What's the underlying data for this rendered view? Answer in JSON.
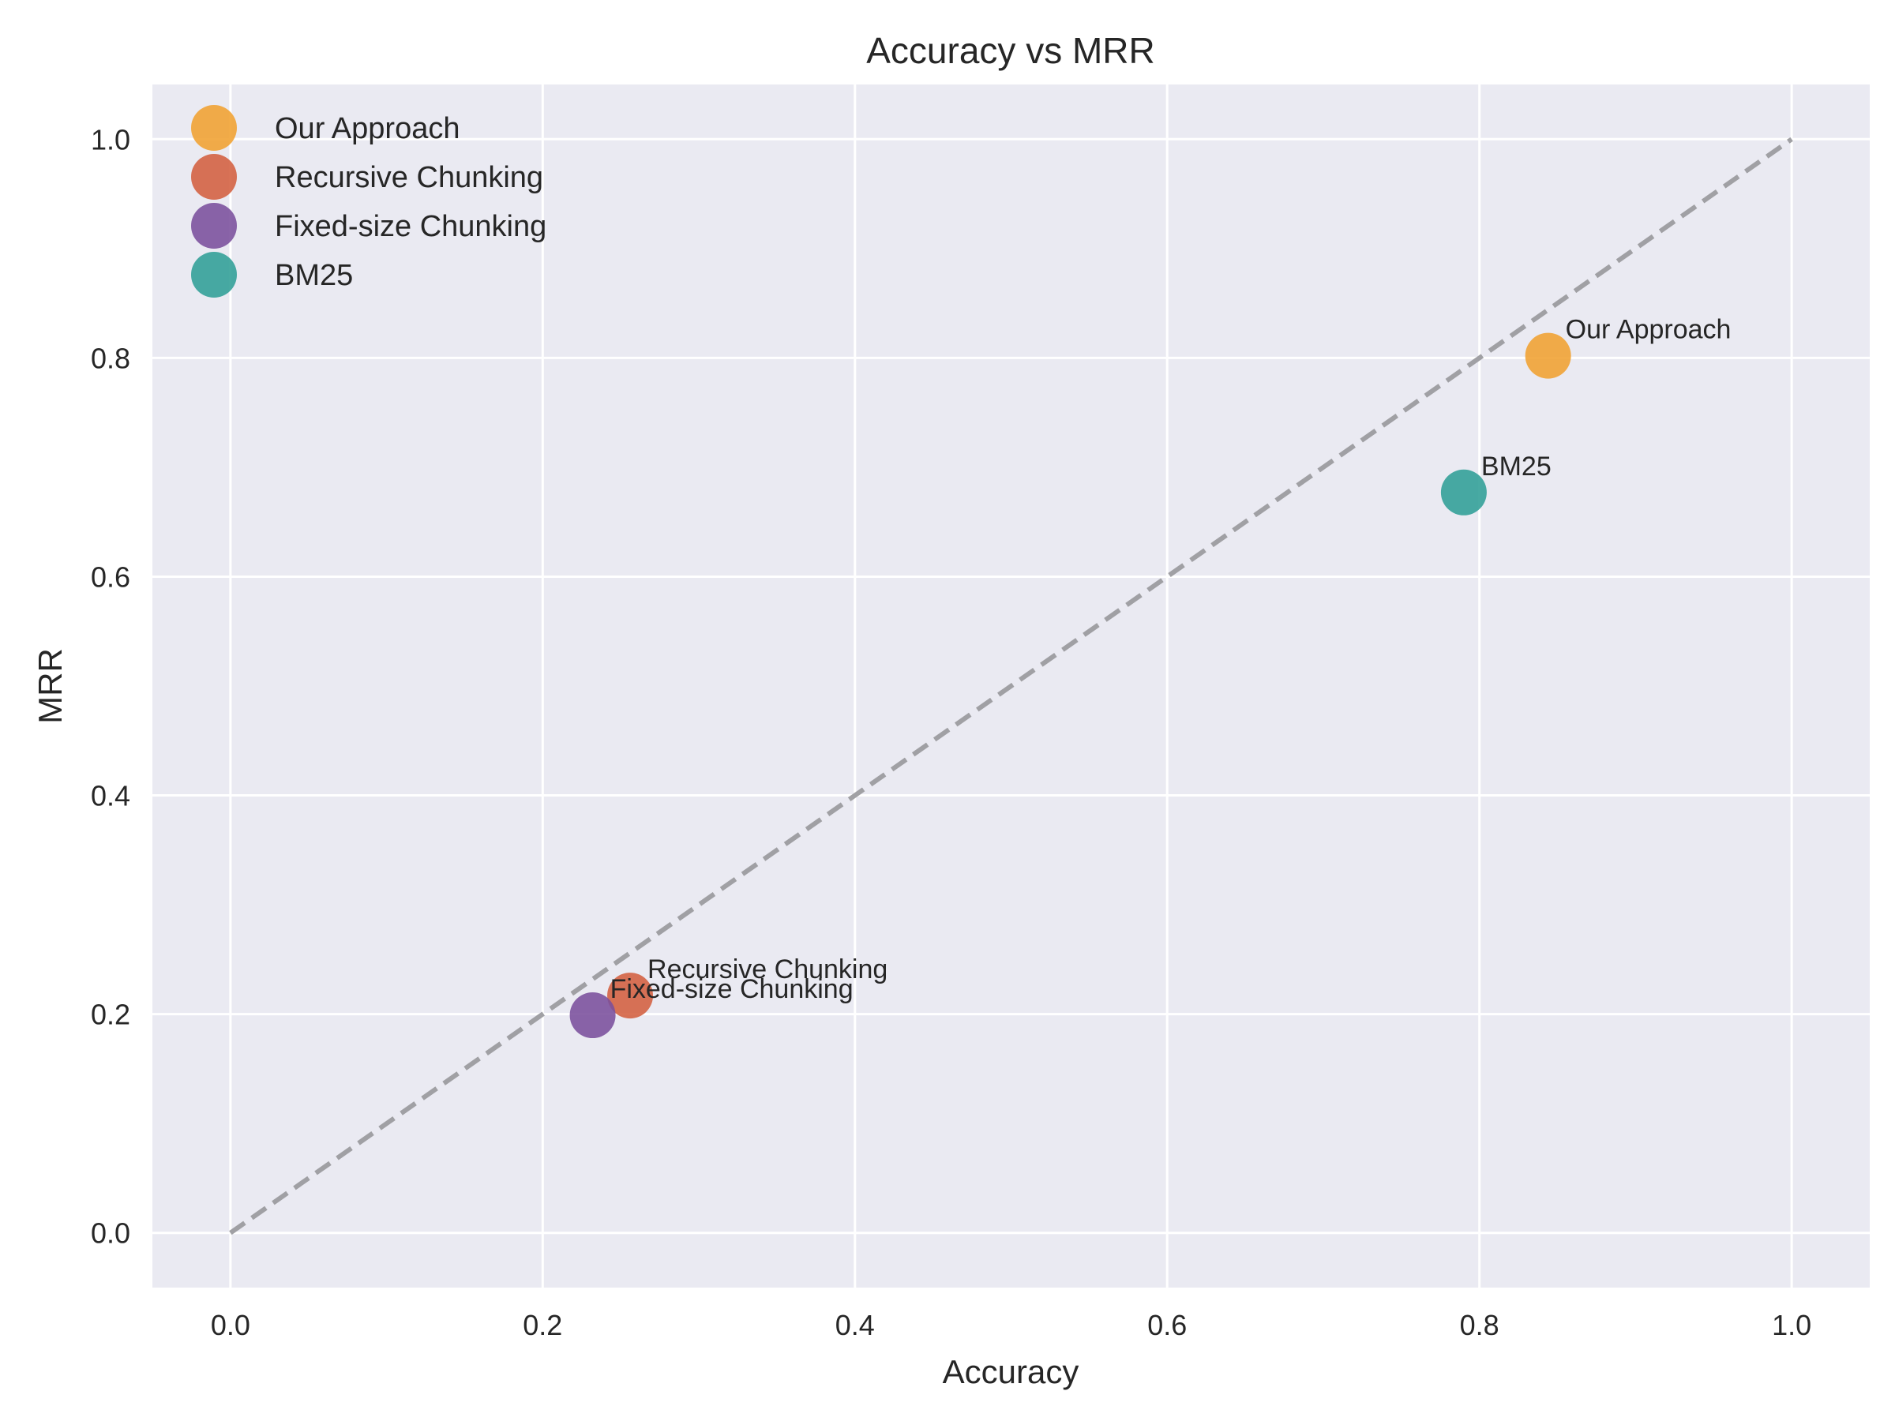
{
  "chart_data": {
    "type": "scatter",
    "title": "Accuracy vs MRR",
    "xlabel": "Accuracy",
    "ylabel": "MRR",
    "xlim": [
      -0.05,
      1.05
    ],
    "ylim": [
      -0.05,
      1.05
    ],
    "xticks": [
      "0.0",
      "0.2",
      "0.4",
      "0.6",
      "0.8",
      "1.0"
    ],
    "yticks": [
      "0.0",
      "0.2",
      "0.4",
      "0.6",
      "0.8",
      "1.0"
    ],
    "grid": true,
    "legend_position": "top-left",
    "reference_line": {
      "from": [
        0,
        0
      ],
      "to": [
        1,
        1
      ],
      "style": "dashed",
      "color": "#a0a0a4"
    },
    "series": [
      {
        "name": "Our Approach",
        "x": 0.844,
        "y": 0.802,
        "color": "#f0a030",
        "annotation": "Our Approach"
      },
      {
        "name": "Recursive Chunking",
        "x": 0.256,
        "y": 0.217,
        "color": "#d35f3f",
        "annotation": "Recursive Chunking"
      },
      {
        "name": "Fixed-size Chunking",
        "x": 0.232,
        "y": 0.199,
        "color": "#7a4f9c",
        "annotation": "Fixed-size Chunking"
      },
      {
        "name": "BM25",
        "x": 0.79,
        "y": 0.677,
        "color": "#2f9e96",
        "annotation": "BM25"
      }
    ]
  }
}
